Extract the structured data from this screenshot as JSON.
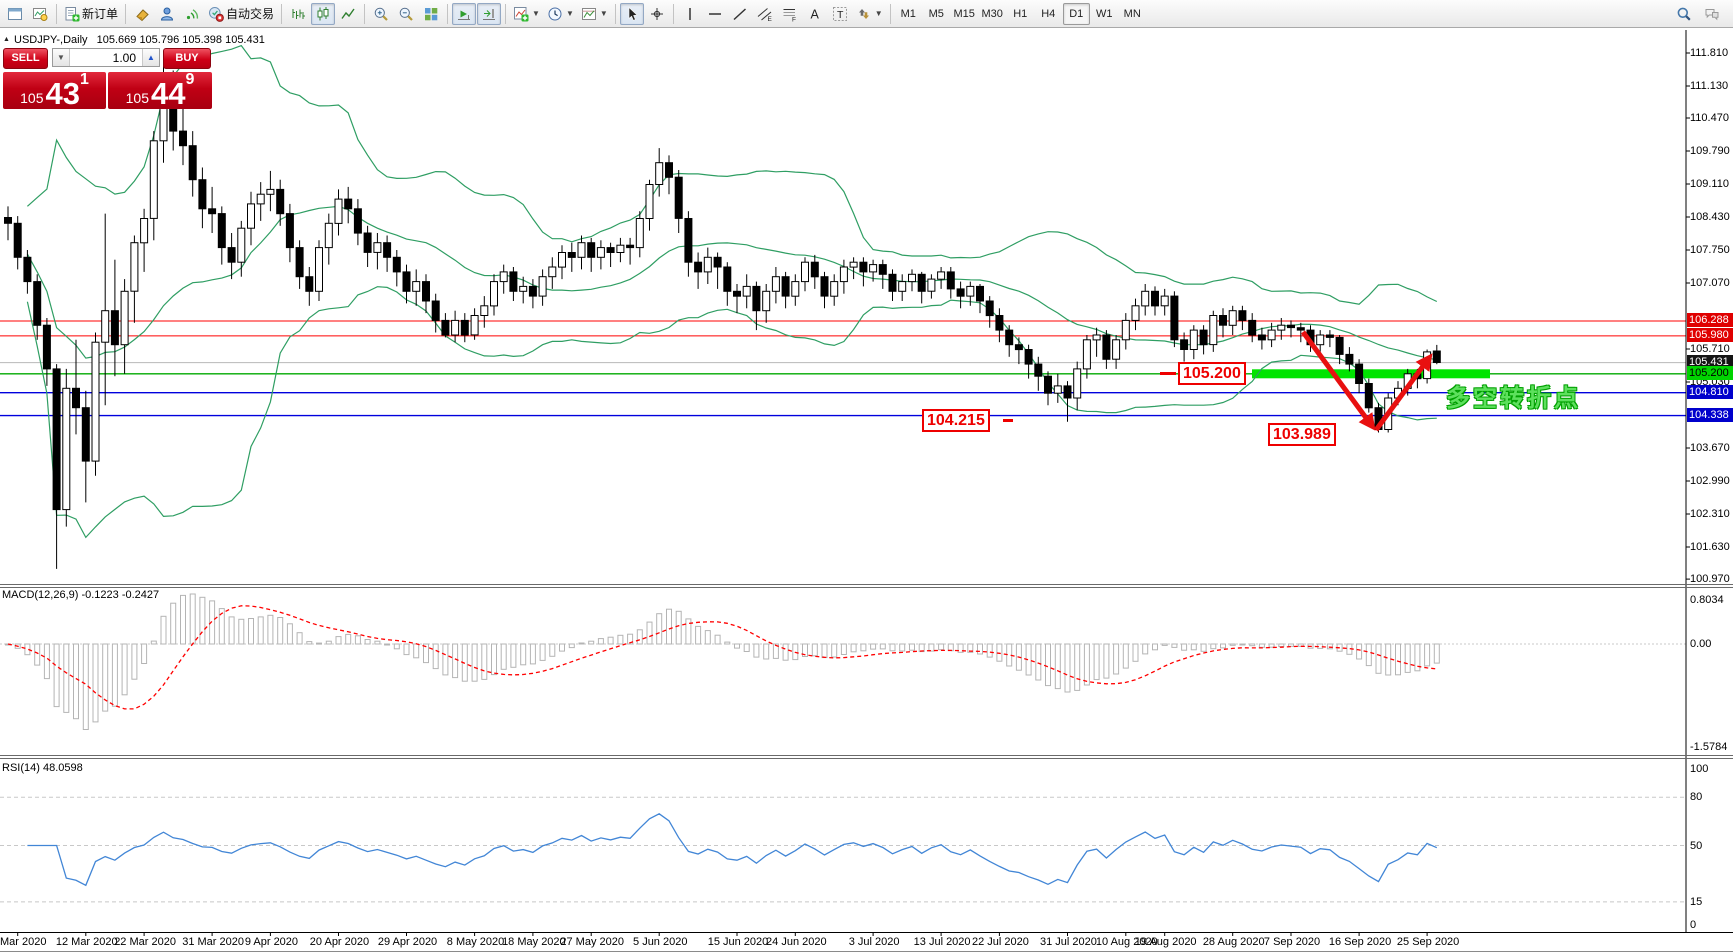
{
  "window": {
    "symbol_title": "USDJPY-,Daily",
    "ohlc_title": "105.669 105.796 105.398 105.431"
  },
  "toolbar": {
    "items": [
      {
        "n": "new-chart-window-icon",
        "ic": "win"
      },
      {
        "n": "chart-profile-icon",
        "ic": "preview"
      },
      {
        "t": "sep"
      },
      {
        "n": "new-order-button",
        "ic": "neworder",
        "label": "新订单"
      },
      {
        "t": "sep"
      },
      {
        "n": "styler-icon",
        "ic": "brush"
      },
      {
        "n": "profiles-icon",
        "ic": "person"
      },
      {
        "n": "signals-icon",
        "ic": "signal"
      },
      {
        "n": "auto-trading-button",
        "ic": "autotrade",
        "label": "自动交易"
      },
      {
        "t": "sep"
      },
      {
        "n": "bar-chart-button",
        "ic": "bars"
      },
      {
        "n": "candlestick-chart-button",
        "ic": "candles",
        "active": true
      },
      {
        "n": "line-chart-button",
        "ic": "linechart"
      },
      {
        "t": "sep"
      },
      {
        "n": "zoom-in-button",
        "ic": "zoomin"
      },
      {
        "n": "zoom-out-button",
        "ic": "zoomout"
      },
      {
        "n": "tile-windows-button",
        "ic": "tiles"
      },
      {
        "t": "sep"
      },
      {
        "n": "auto-scroll-button",
        "ic": "autoscroll",
        "active": true
      },
      {
        "n": "chart-shift-button",
        "ic": "shift",
        "active": true
      },
      {
        "t": "sep"
      },
      {
        "n": "indicators-button",
        "ic": "indicators",
        "dd": true
      },
      {
        "n": "periods-button",
        "ic": "clockdd",
        "dd": true
      },
      {
        "n": "templates-button",
        "ic": "template",
        "dd": true
      },
      {
        "t": "sep"
      },
      {
        "n": "cursor-button",
        "ic": "cursor",
        "active": true
      },
      {
        "n": "crosshair-button",
        "ic": "crosshair"
      },
      {
        "t": "sep"
      },
      {
        "n": "vertical-line-button",
        "ic": "vline"
      },
      {
        "n": "horizontal-line-button",
        "ic": "hline"
      },
      {
        "n": "trendline-button",
        "ic": "trend"
      },
      {
        "n": "equidistant-channel-button",
        "ic": "channel"
      },
      {
        "n": "fibonacci-button",
        "ic": "fib"
      },
      {
        "n": "text-button",
        "ic": "textA"
      },
      {
        "n": "text-label-button",
        "ic": "labelT"
      },
      {
        "n": "arrows-button",
        "ic": "shapes",
        "dd": true
      },
      {
        "t": "sep"
      }
    ],
    "timeframes": [
      "M1",
      "M5",
      "M15",
      "M30",
      "H1",
      "H4",
      "D1",
      "W1",
      "MN"
    ],
    "active_timeframe": "D1",
    "right_icons": [
      {
        "n": "search-icon",
        "ic": "search"
      },
      {
        "n": "chat-icon",
        "ic": "chat"
      }
    ]
  },
  "trade_panel": {
    "sell_label": "SELL",
    "buy_label": "BUY",
    "volume": "1.00",
    "sell_price_prefix": "105",
    "sell_price_big": "43",
    "sell_price_sup": "1",
    "buy_price_prefix": "105",
    "buy_price_big": "44",
    "buy_price_sup": "9"
  },
  "indicator_labels": {
    "macd": "MACD(12,26,9) -0.1223 -0.2427",
    "rsi": "RSI(14) 48.0598"
  },
  "annotations": {
    "level_105200": "105.200",
    "level_104215": "104.215",
    "level_103989": "103.989",
    "note_text": "多空转折点"
  },
  "axis": {
    "price_ticks": [
      "111.810",
      "111.130",
      "110.470",
      "109.790",
      "109.110",
      "108.430",
      "107.750",
      "107.070",
      "105.710",
      "105.030",
      "103.670",
      "102.990",
      "102.310",
      "101.630",
      "100.970"
    ],
    "price_badges": [
      {
        "text": "106.288",
        "bg": "#e00000",
        "fg": "#ffffff"
      },
      {
        "text": "105.980",
        "bg": "#e00000",
        "fg": "#ffffff"
      },
      {
        "text": "105.431",
        "bg": "#141414",
        "fg": "#ffffff"
      },
      {
        "text": "105.200",
        "bg": "#00d400",
        "fg": "#000000"
      },
      {
        "text": "104.810",
        "bg": "#0000cc",
        "fg": "#ffffff"
      },
      {
        "text": "104.338",
        "bg": "#0000cc",
        "fg": "#ffffff"
      }
    ],
    "macd_ticks": [
      "0.8034",
      "0.00",
      "-1.5784"
    ],
    "rsi_ticks": [
      "100",
      "80",
      "50",
      "15",
      "0"
    ],
    "dates": [
      {
        "t": "Mar 2020",
        "bar": 1
      },
      {
        "t": "12 Mar 2020",
        "bar": 8
      },
      {
        "t": "22 Mar 2020",
        "bar": 14
      },
      {
        "t": "31 Mar 2020",
        "bar": 21
      },
      {
        "t": "9 Apr 2020",
        "bar": 27
      },
      {
        "t": "20 Apr 2020",
        "bar": 34
      },
      {
        "t": "29 Apr 2020",
        "bar": 41
      },
      {
        "t": "8 May 2020",
        "bar": 48
      },
      {
        "t": "18 May 2020",
        "bar": 54
      },
      {
        "t": "27 May 2020",
        "bar": 60
      },
      {
        "t": "5 Jun 2020",
        "bar": 67
      },
      {
        "t": "15 Jun 2020",
        "bar": 75
      },
      {
        "t": "24 Jun 2020",
        "bar": 81
      },
      {
        "t": "3 Jul 2020",
        "bar": 89
      },
      {
        "t": "13 Jul 2020",
        "bar": 96
      },
      {
        "t": "22 Jul 2020",
        "bar": 102
      },
      {
        "t": "31 Jul 2020",
        "bar": 109
      },
      {
        "t": "10 Aug 2020",
        "bar": 115
      },
      {
        "t": "19 Aug 2020",
        "bar": 119
      },
      {
        "t": "28 Aug 2020",
        "bar": 126
      },
      {
        "t": "7 Sep 2020",
        "bar": 132
      },
      {
        "t": "16 Sep 2020",
        "bar": 139
      },
      {
        "t": "25 Sep 2020",
        "bar": 146
      }
    ]
  },
  "chart_data": {
    "type": "candlestick",
    "title": "USDJPY-,Daily",
    "symbol": "USDJPY",
    "timeframe": "Daily",
    "last_ohlc": {
      "open": 105.669,
      "high": 105.796,
      "low": 105.398,
      "close": 105.431
    },
    "y_axis_range": [
      100.63,
      112.15
    ],
    "overlays": {
      "bollinger": {
        "period": 20,
        "deviation": 2,
        "color": "#2f9e63"
      }
    },
    "macd": {
      "fast": 12,
      "slow": 26,
      "signal": 9,
      "current_main": -0.1223,
      "current_signal": -0.2427,
      "scale_max": 0.8034,
      "scale_min": -1.5784
    },
    "rsi": {
      "period": 14,
      "current": 48.0598,
      "levels": [
        80,
        50,
        15
      ],
      "scale": [
        0,
        100
      ]
    },
    "levels": [
      {
        "price": 106.288,
        "color": "#ff0000",
        "w": 1
      },
      {
        "price": 105.98,
        "color": "#ff0000",
        "w": 1
      },
      {
        "price": 105.431,
        "color": "#b8b8b8",
        "w": 1,
        "role": "last-price"
      },
      {
        "price": 105.2,
        "color": "#00aa00",
        "w": 1.4
      },
      {
        "price": 104.81,
        "color": "#0000dd",
        "w": 1.4
      },
      {
        "price": 104.338,
        "color": "#0000dd",
        "w": 1.4
      }
    ],
    "drawings": {
      "support_band": {
        "price": 105.2,
        "from_bar": 128,
        "to_bar": 152.5,
        "thickness": 9,
        "color": "#00e400"
      },
      "arrow_down": {
        "from": {
          "bar": 133.2,
          "price": 106.06
        },
        "to": {
          "bar": 140.3,
          "price": 104.12
        },
        "color": "#e81010"
      },
      "arrow_up": {
        "from": {
          "bar": 140.7,
          "price": 104.05
        },
        "to": {
          "bar": 146.2,
          "price": 105.52
        },
        "color": "#e81010"
      }
    },
    "ohlc": [
      [
        108.42,
        108.65,
        107.95,
        108.3
      ],
      [
        108.3,
        108.45,
        107.35,
        107.6
      ],
      [
        107.6,
        107.75,
        106.85,
        107.1
      ],
      [
        107.1,
        107.25,
        105.9,
        106.2
      ],
      [
        106.2,
        106.35,
        104.95,
        105.3
      ],
      [
        105.3,
        105.4,
        101.18,
        102.4
      ],
      [
        102.4,
        105.3,
        102.05,
        104.9
      ],
      [
        104.9,
        105.9,
        103.95,
        104.5
      ],
      [
        104.5,
        104.85,
        102.55,
        103.4
      ],
      [
        103.4,
        106.05,
        103.1,
        105.85
      ],
      [
        105.85,
        108.5,
        104.55,
        106.5
      ],
      [
        106.5,
        107.55,
        105.15,
        105.8
      ],
      [
        105.8,
        107.15,
        105.2,
        106.9
      ],
      [
        106.9,
        108.05,
        106.25,
        107.9
      ],
      [
        107.9,
        108.6,
        107.3,
        108.4
      ],
      [
        108.4,
        110.2,
        107.95,
        110.0
      ],
      [
        110.0,
        111.71,
        109.55,
        111.2
      ],
      [
        111.2,
        111.45,
        109.8,
        110.2
      ],
      [
        110.2,
        110.95,
        109.5,
        109.9
      ],
      [
        109.9,
        110.2,
        108.85,
        109.2
      ],
      [
        109.2,
        109.45,
        108.2,
        108.6
      ],
      [
        108.6,
        109.05,
        108.1,
        108.5
      ],
      [
        108.5,
        108.65,
        107.45,
        107.8
      ],
      [
        107.8,
        108.1,
        107.15,
        107.5
      ],
      [
        107.5,
        108.35,
        107.2,
        108.2
      ],
      [
        108.2,
        108.95,
        107.85,
        108.7
      ],
      [
        108.7,
        109.15,
        108.35,
        108.9
      ],
      [
        108.9,
        109.38,
        108.55,
        109.0
      ],
      [
        109.0,
        109.2,
        108.25,
        108.5
      ],
      [
        108.5,
        108.7,
        107.5,
        107.8
      ],
      [
        107.8,
        107.95,
        106.95,
        107.2
      ],
      [
        107.2,
        107.4,
        106.6,
        106.9
      ],
      [
        106.9,
        107.95,
        106.7,
        107.8
      ],
      [
        107.8,
        108.5,
        107.45,
        108.3
      ],
      [
        108.3,
        109.0,
        108.05,
        108.8
      ],
      [
        108.8,
        109.05,
        108.3,
        108.6
      ],
      [
        108.6,
        108.8,
        107.85,
        108.1
      ],
      [
        108.1,
        108.25,
        107.4,
        107.7
      ],
      [
        107.7,
        108.1,
        107.35,
        107.9
      ],
      [
        107.9,
        108.05,
        107.3,
        107.6
      ],
      [
        107.6,
        107.75,
        107.0,
        107.3
      ],
      [
        107.3,
        107.45,
        106.65,
        106.9
      ],
      [
        106.9,
        107.35,
        106.6,
        107.1
      ],
      [
        107.1,
        107.25,
        106.45,
        106.7
      ],
      [
        106.7,
        106.85,
        106.05,
        106.3
      ],
      [
        106.3,
        106.45,
        105.95,
        106.0
      ],
      [
        106.0,
        106.5,
        105.85,
        106.3
      ],
      [
        106.3,
        106.45,
        105.85,
        106.0
      ],
      [
        106.0,
        106.55,
        105.9,
        106.4
      ],
      [
        106.4,
        106.8,
        106.15,
        106.6
      ],
      [
        106.6,
        107.25,
        106.4,
        107.1
      ],
      [
        107.1,
        107.45,
        106.85,
        107.3
      ],
      [
        107.3,
        107.4,
        106.7,
        106.9
      ],
      [
        106.9,
        107.2,
        106.65,
        107.0
      ],
      [
        107.0,
        107.15,
        106.55,
        106.8
      ],
      [
        106.8,
        107.35,
        106.6,
        107.2
      ],
      [
        107.2,
        107.6,
        106.95,
        107.4
      ],
      [
        107.4,
        107.85,
        107.15,
        107.7
      ],
      [
        107.7,
        107.9,
        107.3,
        107.6
      ],
      [
        107.6,
        108.05,
        107.35,
        107.9
      ],
      [
        107.9,
        108.0,
        107.3,
        107.6
      ],
      [
        107.6,
        107.95,
        107.35,
        107.8
      ],
      [
        107.8,
        107.9,
        107.4,
        107.7
      ],
      [
        107.7,
        108.0,
        107.5,
        107.85
      ],
      [
        107.85,
        108.0,
        107.45,
        107.8
      ],
      [
        107.8,
        108.55,
        107.6,
        108.4
      ],
      [
        108.4,
        109.2,
        108.15,
        109.1
      ],
      [
        109.1,
        109.85,
        108.85,
        109.55
      ],
      [
        109.55,
        109.7,
        108.9,
        109.25
      ],
      [
        109.25,
        109.4,
        108.1,
        108.4
      ],
      [
        108.4,
        108.55,
        107.2,
        107.5
      ],
      [
        107.5,
        107.7,
        106.95,
        107.3
      ],
      [
        107.3,
        107.8,
        107.05,
        107.6
      ],
      [
        107.6,
        107.7,
        106.95,
        107.4
      ],
      [
        107.4,
        107.5,
        106.6,
        106.9
      ],
      [
        106.9,
        107.05,
        106.45,
        106.8
      ],
      [
        106.8,
        107.25,
        106.55,
        107.0
      ],
      [
        107.0,
        107.1,
        106.1,
        106.5
      ],
      [
        106.5,
        107.05,
        106.25,
        106.9
      ],
      [
        106.9,
        107.4,
        106.65,
        107.2
      ],
      [
        107.2,
        107.3,
        106.55,
        106.8
      ],
      [
        106.8,
        107.25,
        106.6,
        107.1
      ],
      [
        107.1,
        107.6,
        106.9,
        107.5
      ],
      [
        107.5,
        107.65,
        106.95,
        107.2
      ],
      [
        107.2,
        107.3,
        106.55,
        106.8
      ],
      [
        106.8,
        107.25,
        106.6,
        107.1
      ],
      [
        107.1,
        107.55,
        106.85,
        107.4
      ],
      [
        107.4,
        107.6,
        107.15,
        107.5
      ],
      [
        107.5,
        107.6,
        107.0,
        107.3
      ],
      [
        107.3,
        107.55,
        107.1,
        107.45
      ],
      [
        107.45,
        107.55,
        106.95,
        107.25
      ],
      [
        107.25,
        107.35,
        106.7,
        106.9
      ],
      [
        106.9,
        107.25,
        106.7,
        107.1
      ],
      [
        107.1,
        107.35,
        106.9,
        107.25
      ],
      [
        107.25,
        107.3,
        106.65,
        106.9
      ],
      [
        106.9,
        107.25,
        106.75,
        107.15
      ],
      [
        107.15,
        107.4,
        106.95,
        107.3
      ],
      [
        107.3,
        107.4,
        106.75,
        106.95
      ],
      [
        106.95,
        107.1,
        106.55,
        106.8
      ],
      [
        106.8,
        107.1,
        106.6,
        107.0
      ],
      [
        107.0,
        107.05,
        106.45,
        106.7
      ],
      [
        106.7,
        106.8,
        106.15,
        106.4
      ],
      [
        106.4,
        106.55,
        105.85,
        106.1
      ],
      [
        106.1,
        106.2,
        105.55,
        105.8
      ],
      [
        105.8,
        105.95,
        105.4,
        105.7
      ],
      [
        105.7,
        105.8,
        105.1,
        105.4
      ],
      [
        105.4,
        105.55,
        104.85,
        105.15
      ],
      [
        105.15,
        105.25,
        104.55,
        104.8
      ],
      [
        104.8,
        105.2,
        104.6,
        104.95
      ],
      [
        104.95,
        105.05,
        104.21,
        104.7
      ],
      [
        104.7,
        105.45,
        104.45,
        105.3
      ],
      [
        105.3,
        106.0,
        105.1,
        105.9
      ],
      [
        105.9,
        106.15,
        105.55,
        106.0
      ],
      [
        106.0,
        106.1,
        105.3,
        105.5
      ],
      [
        105.5,
        106.0,
        105.3,
        105.9
      ],
      [
        105.9,
        106.45,
        105.7,
        106.3
      ],
      [
        106.3,
        106.75,
        106.1,
        106.6
      ],
      [
        106.6,
        107.05,
        106.4,
        106.9
      ],
      [
        106.9,
        107.0,
        106.4,
        106.6
      ],
      [
        106.6,
        106.95,
        106.4,
        106.8
      ],
      [
        106.8,
        106.9,
        105.75,
        105.9
      ],
      [
        105.9,
        106.05,
        105.45,
        105.7
      ],
      [
        105.7,
        106.2,
        105.5,
        106.1
      ],
      [
        106.1,
        106.2,
        105.6,
        105.8
      ],
      [
        105.8,
        106.5,
        105.65,
        106.4
      ],
      [
        106.4,
        106.55,
        105.95,
        106.2
      ],
      [
        106.2,
        106.6,
        106.0,
        106.5
      ],
      [
        106.5,
        106.6,
        106.1,
        106.3
      ],
      [
        106.3,
        106.45,
        105.85,
        106.0
      ],
      [
        106.0,
        106.15,
        105.7,
        105.9
      ],
      [
        105.9,
        106.25,
        105.75,
        106.1
      ],
      [
        106.1,
        106.35,
        105.9,
        106.2
      ],
      [
        106.2,
        106.3,
        105.95,
        106.15
      ],
      [
        106.15,
        106.25,
        105.85,
        106.1
      ],
      [
        106.1,
        106.2,
        105.65,
        105.8
      ],
      [
        105.8,
        106.1,
        105.65,
        106.0
      ],
      [
        106.0,
        106.1,
        105.75,
        105.95
      ],
      [
        105.95,
        106.0,
        105.4,
        105.6
      ],
      [
        105.6,
        105.75,
        105.25,
        105.4
      ],
      [
        105.4,
        105.5,
        104.8,
        105.0
      ],
      [
        105.0,
        105.1,
        104.4,
        104.5
      ],
      [
        104.5,
        104.6,
        103.99,
        104.05
      ],
      [
        104.05,
        104.8,
        103.99,
        104.7
      ],
      [
        104.7,
        105.05,
        104.55,
        104.9
      ],
      [
        104.9,
        105.3,
        104.75,
        105.2
      ],
      [
        105.2,
        105.3,
        104.9,
        105.1
      ],
      [
        105.1,
        105.7,
        105.0,
        105.65
      ],
      [
        105.669,
        105.796,
        105.398,
        105.431
      ]
    ]
  }
}
